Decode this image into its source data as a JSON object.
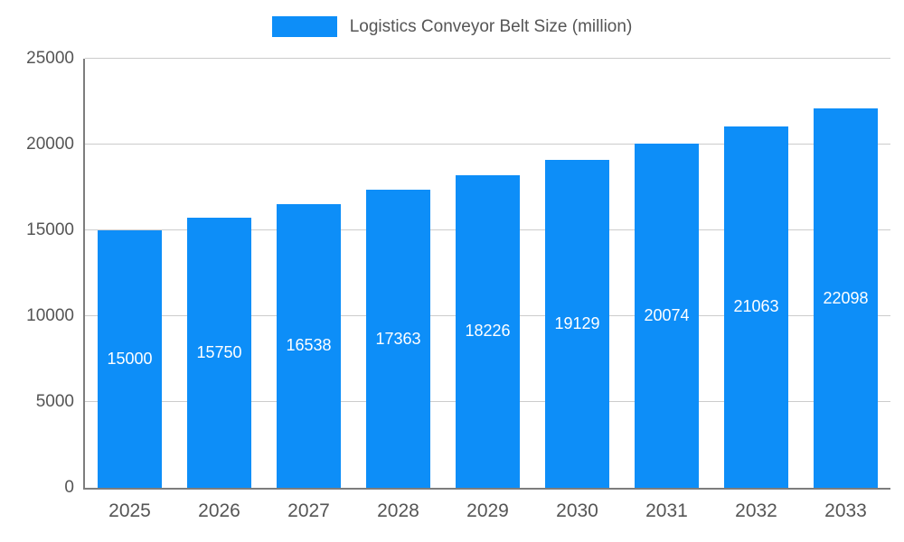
{
  "legend": {
    "label": "Logistics Conveyor Belt Size (million)"
  },
  "chart_data": {
    "type": "bar",
    "title": "Logistics Conveyor Belt Size (million)",
    "categories": [
      "2025",
      "2026",
      "2027",
      "2028",
      "2029",
      "2030",
      "2031",
      "2032",
      "2033"
    ],
    "values": [
      15000,
      15750,
      16538,
      17363,
      18226,
      19129,
      20074,
      21063,
      22098
    ],
    "xlabel": "",
    "ylabel": "",
    "ylim": [
      0,
      25000
    ],
    "yticks": [
      0,
      5000,
      10000,
      15000,
      20000,
      25000
    ],
    "bar_color": "#0d8ef8",
    "value_label_color": "#ffffff",
    "grid_color": "#cccccc",
    "axis_color": "#7d7d7d",
    "text_color": "#555555",
    "grid": true,
    "legend_position": "top",
    "value_label_position": "center-of-bar"
  }
}
